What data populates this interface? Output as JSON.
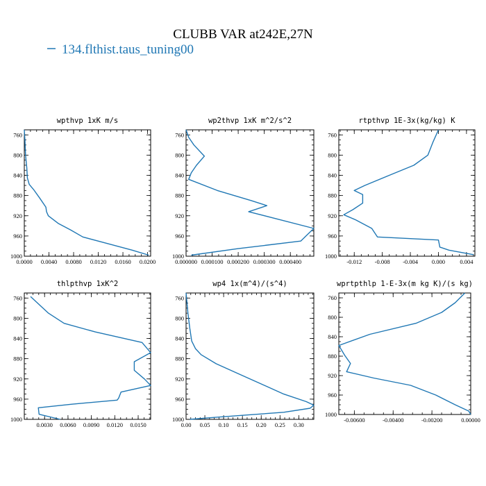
{
  "figure": {
    "title": "CLUBB VAR at242E,27N",
    "legend": "134.flthist.taus_tuning00",
    "legend_color": "#1f77b4"
  },
  "chart_data": [
    {
      "type": "line",
      "title": "wpthvp   1xK m/s",
      "xlim": [
        0.0,
        0.0205
      ],
      "ylim": [
        1000,
        750
      ],
      "xticks": [
        0.0,
        0.004,
        0.008,
        0.012,
        0.016,
        0.02
      ],
      "xtick_labels": [
        "0.0000",
        "0.0040",
        "0.0080",
        "0.0120",
        "0.0160",
        "0.0200"
      ],
      "yticks": [
        760,
        800,
        840,
        880,
        920,
        960,
        1000
      ],
      "ytick_labels": [
        "760",
        "800",
        "840",
        "880",
        "920",
        "960",
        "1000"
      ],
      "series": [
        {
          "x": [
            0.0,
            0.0001,
            0.0002,
            0.0004,
            0.0005,
            0.0008,
            0.0015,
            0.0025,
            0.0035,
            0.0036,
            0.0039,
            0.0055,
            0.0075,
            0.0095,
            0.0135,
            0.0175,
            0.0202
          ],
          "y": [
            750,
            770,
            800,
            825,
            845,
            858,
            868,
            885,
            903,
            912,
            920,
            935,
            948,
            962,
            975,
            988,
            998
          ]
        }
      ]
    },
    {
      "type": "line",
      "title": "wp2thvp   1xK m^2/s^2",
      "xlim": [
        0.0,
        0.00049
      ],
      "ylim": [
        1000,
        750
      ],
      "xticks": [
        0.0,
        0.0001,
        0.0002,
        0.0003,
        0.0004
      ],
      "xtick_labels": [
        "0.000000",
        "0.000100",
        "0.000200",
        "0.000300",
        "0.000400"
      ],
      "yticks": [
        760,
        800,
        840,
        880,
        920,
        960,
        1000
      ],
      "ytick_labels": [
        "760",
        "800",
        "840",
        "880",
        "920",
        "960",
        "1000"
      ],
      "series": [
        {
          "x": [
            0.0,
            1e-05,
            3e-05,
            7e-05,
            4e-05,
            2e-05,
            1e-05,
            0.00012,
            0.00025,
            0.00031,
            0.00024,
            0.00049,
            0.00046,
            0.00044,
            0.0002,
            2e-05
          ],
          "y": [
            750,
            765,
            780,
            802,
            820,
            835,
            848,
            870,
            890,
            900,
            912,
            945,
            960,
            970,
            985,
            998
          ]
        }
      ]
    },
    {
      "type": "line",
      "title": "rtpthvp   1E-3x(kg/kg) K",
      "xlim": [
        -0.0142,
        0.0052
      ],
      "ylim": [
        1000,
        750
      ],
      "xticks": [
        -0.012,
        -0.008,
        -0.004,
        0.0,
        0.004
      ],
      "xtick_labels": [
        "-0.012",
        "-0.008",
        "-0.004",
        "0.000",
        "0.004"
      ],
      "yticks": [
        760,
        800,
        840,
        880,
        920,
        960,
        1000
      ],
      "ytick_labels": [
        "760",
        "800",
        "840",
        "880",
        "920",
        "960",
        "1000"
      ],
      "series": [
        {
          "x": [
            0.0,
            -0.0008,
            -0.0015,
            -0.0035,
            -0.007,
            -0.0105,
            -0.012,
            -0.0108,
            -0.0108,
            -0.0122,
            -0.0135,
            -0.0118,
            -0.0095,
            -0.0087,
            0.0,
            0.0002,
            0.0015,
            0.005
          ],
          "y": [
            750,
            775,
            800,
            820,
            840,
            860,
            870,
            878,
            895,
            908,
            918,
            928,
            945,
            962,
            968,
            982,
            988,
            997
          ]
        }
      ]
    },
    {
      "type": "line",
      "title": "thlpthvp   1xK^2",
      "xlim": [
        0.0004,
        0.0166
      ],
      "ylim": [
        1000,
        750
      ],
      "xticks": [
        0.003,
        0.006,
        0.009,
        0.012,
        0.015
      ],
      "xtick_labels": [
        "0.0030",
        "0.0060",
        "0.0090",
        "0.0120",
        "0.0150"
      ],
      "yticks": [
        760,
        800,
        840,
        880,
        920,
        960,
        1000
      ],
      "ytick_labels": [
        "760",
        "800",
        "840",
        "880",
        "920",
        "960",
        "1000"
      ],
      "series": [
        {
          "x": [
            0.0012,
            0.0035,
            0.0055,
            0.0095,
            0.0155,
            0.0166,
            0.0145,
            0.0145,
            0.0158,
            0.0166,
            0.0128,
            0.0125,
            0.0123,
            0.0065,
            0.0022,
            0.0023,
            0.005
          ],
          "y": [
            757,
            790,
            810,
            827,
            848,
            868,
            886,
            903,
            920,
            933,
            946,
            958,
            962,
            970,
            977,
            990,
            1000
          ]
        }
      ]
    },
    {
      "type": "line",
      "title": "wp4   1x(m^4)/(s^4)",
      "xlim": [
        0.0,
        0.34
      ],
      "ylim": [
        1000,
        750
      ],
      "xticks": [
        0.0,
        0.05,
        0.1,
        0.15,
        0.2,
        0.25,
        0.3
      ],
      "xtick_labels": [
        "0.00",
        "0.05",
        "0.10",
        "0.15",
        "0.20",
        "0.25",
        "0.30"
      ],
      "yticks": [
        760,
        800,
        840,
        880,
        920,
        960,
        1000
      ],
      "ytick_labels": [
        "760",
        "800",
        "840",
        "880",
        "920",
        "960",
        "1000"
      ],
      "series": [
        {
          "x": [
            0.0,
            0.005,
            0.01,
            0.015,
            0.025,
            0.04,
            0.08,
            0.14,
            0.2,
            0.26,
            0.32,
            0.34,
            0.33,
            0.26,
            0.15,
            0.06,
            0.01
          ],
          "y": [
            750,
            790,
            820,
            845,
            860,
            872,
            890,
            910,
            930,
            950,
            965,
            972,
            978,
            986,
            992,
            997,
            1000
          ]
        }
      ]
    },
    {
      "type": "line",
      "title": "wprtpthlp   1-E-3x(m kg K)/(s kg)",
      "xlim": [
        -0.0068,
        0.0
      ],
      "ylim": [
        1000,
        750
      ],
      "xticks": [
        -0.006,
        -0.004,
        -0.002,
        0.0
      ],
      "xtick_labels": [
        "-0.00600",
        "-0.00400",
        "-0.00200",
        "0.00000"
      ],
      "yticks": [
        760,
        800,
        840,
        880,
        920,
        960,
        1000
      ],
      "ytick_labels": [
        "760",
        "800",
        "840",
        "880",
        "920",
        "960",
        "1000"
      ],
      "series": [
        {
          "x": [
            -0.0003,
            -0.0008,
            -0.0015,
            -0.0028,
            -0.0052,
            -0.0068,
            -0.0065,
            -0.0062,
            -0.0064,
            -0.005,
            -0.0031,
            -0.0018,
            -0.0008,
            -0.0001,
            0.0
          ],
          "y": [
            750,
            770,
            790,
            812,
            835,
            858,
            878,
            895,
            912,
            925,
            940,
            960,
            980,
            993,
            1000
          ]
        }
      ]
    }
  ]
}
